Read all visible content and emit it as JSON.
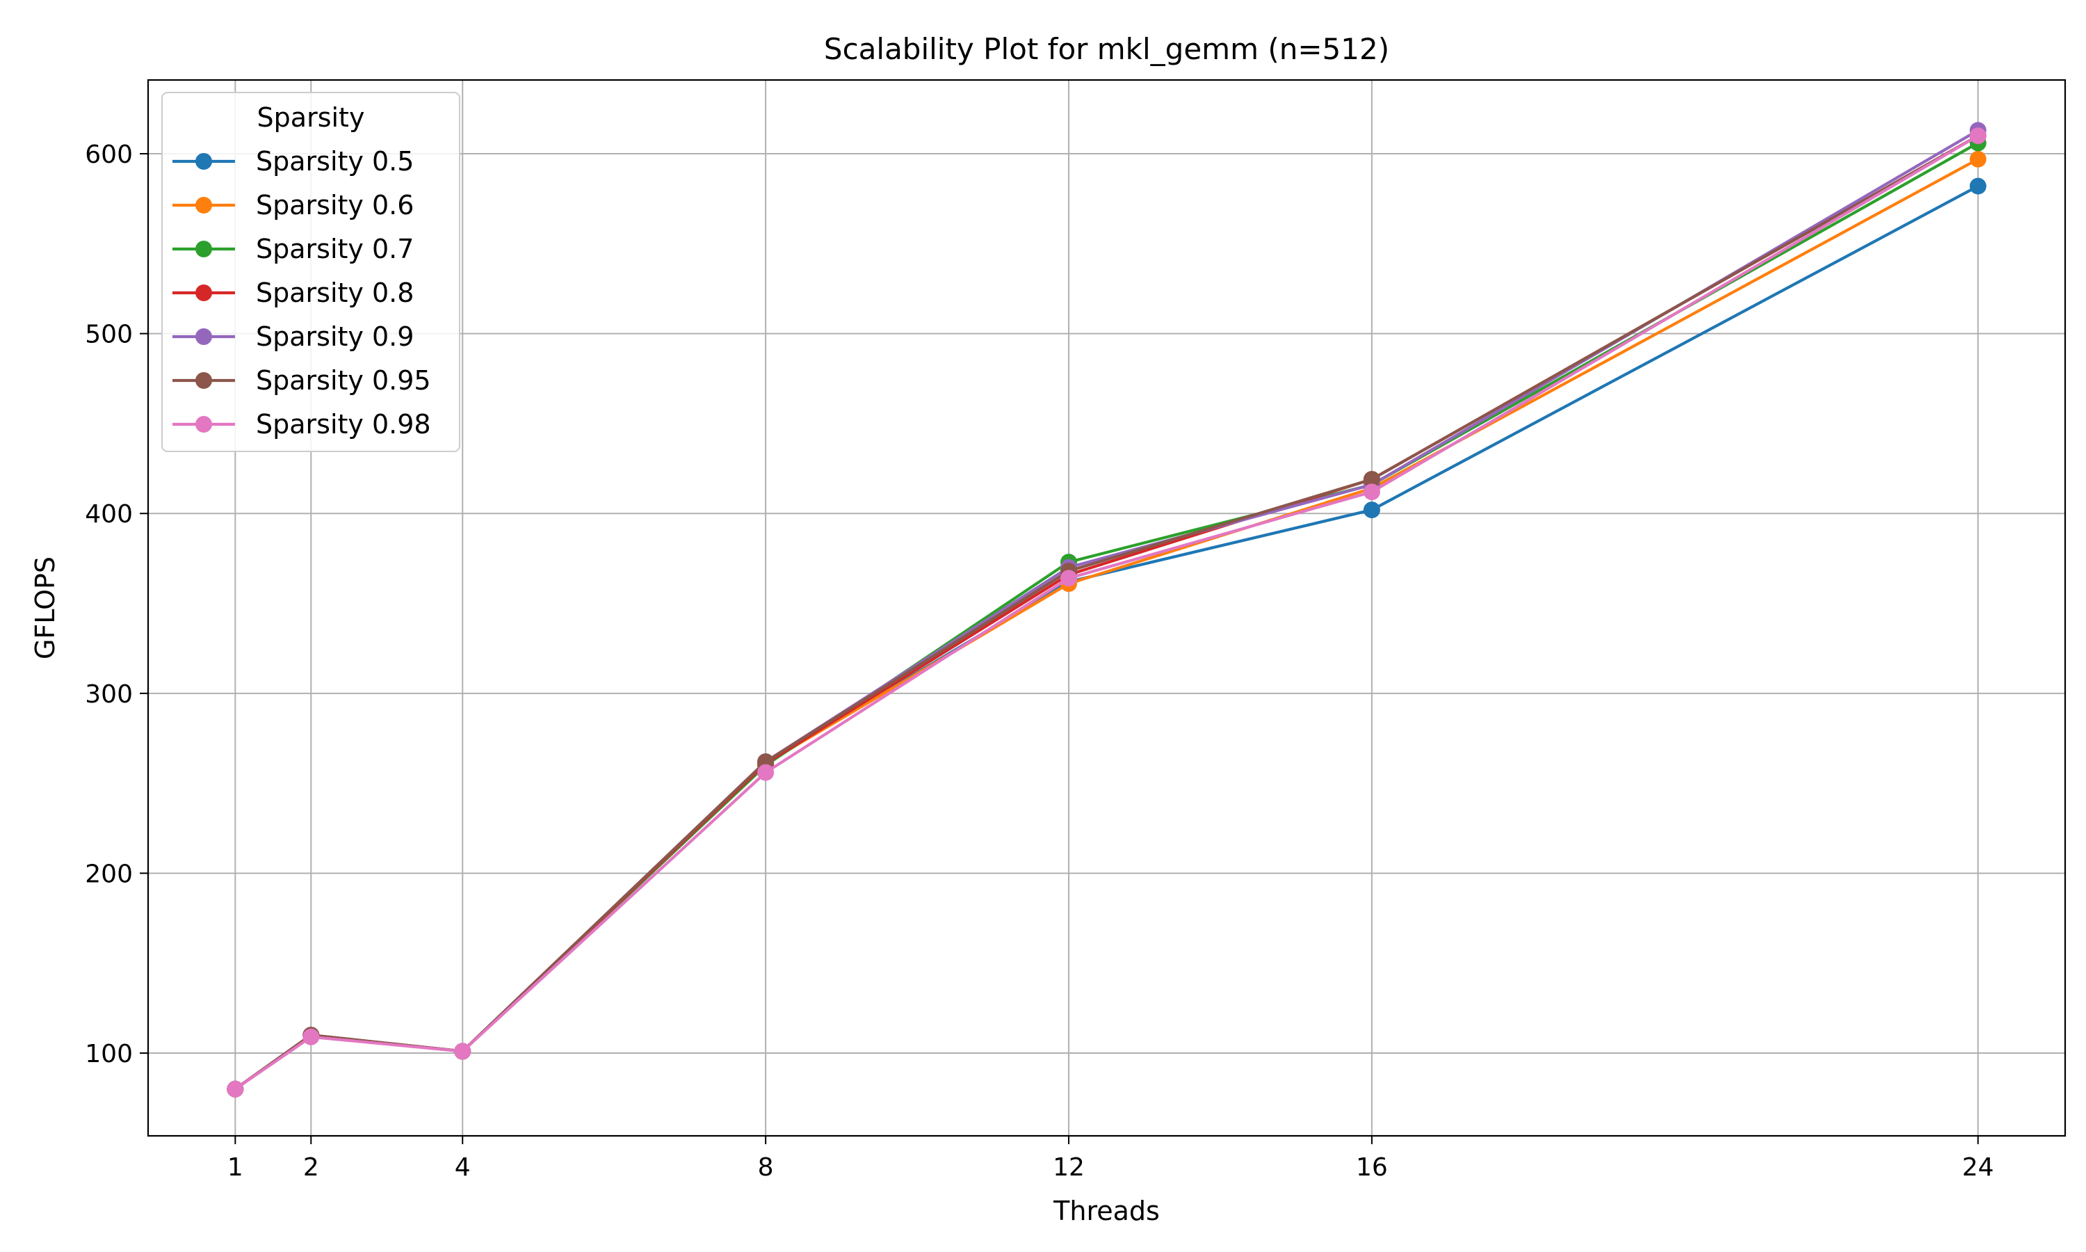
{
  "chart_data": {
    "type": "line",
    "title": "Scalability Plot for mkl_gemm (n=512)",
    "xlabel": "Threads",
    "ylabel": "GFLOPS",
    "x": [
      1,
      2,
      4,
      8,
      12,
      16,
      24
    ],
    "x_ticks": [
      1,
      2,
      4,
      8,
      12,
      16,
      24
    ],
    "y_ticks": [
      100,
      200,
      300,
      400,
      500,
      600
    ],
    "xlim": [
      -0.15,
      25.15
    ],
    "ylim": [
      54,
      641
    ],
    "grid": true,
    "marker": "circle",
    "legend": {
      "title": "Sparsity",
      "placement": "top-left"
    },
    "series": [
      {
        "name": "Sparsity 0.5",
        "color": "#1f77b4",
        "values": [
          80,
          110,
          101,
          261,
          362,
          402,
          582
        ]
      },
      {
        "name": "Sparsity 0.6",
        "color": "#ff7f0e",
        "values": [
          80,
          110,
          101,
          261,
          361,
          414,
          597
        ]
      },
      {
        "name": "Sparsity 0.7",
        "color": "#2ca02c",
        "values": [
          80,
          110,
          101,
          260,
          373,
          416,
          606
        ]
      },
      {
        "name": "Sparsity 0.8",
        "color": "#d62728",
        "values": [
          80,
          110,
          101,
          261,
          366,
          419,
          610
        ]
      },
      {
        "name": "Sparsity 0.9",
        "color": "#9467bd",
        "values": [
          80,
          110,
          101,
          262,
          370,
          416,
          613
        ]
      },
      {
        "name": "Sparsity 0.95",
        "color": "#8c564b",
        "values": [
          80,
          110,
          101,
          262,
          368,
          419,
          610
        ]
      },
      {
        "name": "Sparsity 0.98",
        "color": "#e377c2",
        "values": [
          80,
          109,
          101,
          256,
          364,
          412,
          610
        ]
      }
    ]
  }
}
